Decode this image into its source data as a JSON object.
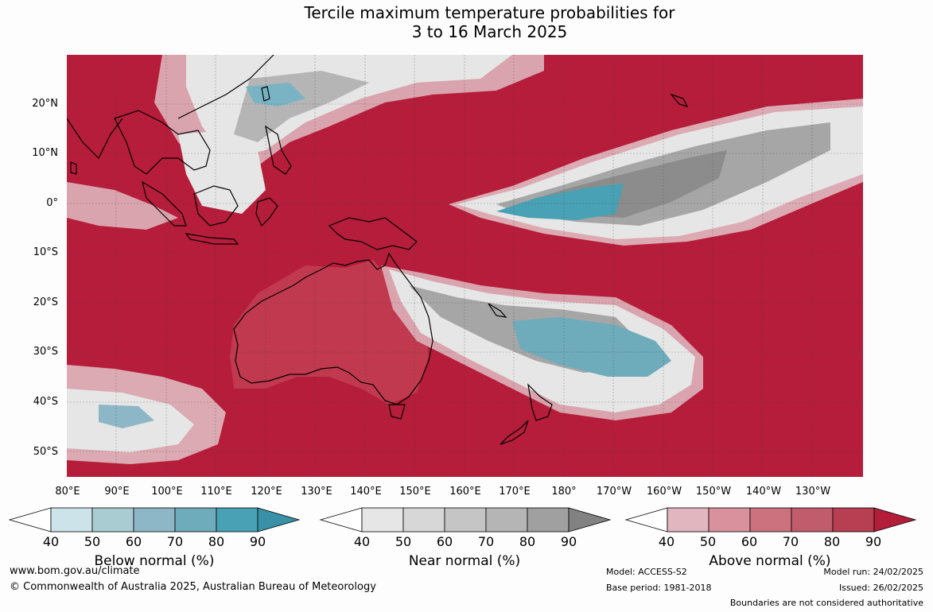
{
  "title": {
    "line1": "Tercile maximum temperature probabilities for",
    "line2": "3 to 16 March 2025"
  },
  "map": {
    "lat_labels": [
      "20°N",
      "10°N",
      "0°",
      "10°S",
      "20°S",
      "30°S",
      "40°S",
      "50°S"
    ],
    "lon_labels": [
      "80°E",
      "90°E",
      "100°E",
      "110°E",
      "120°E",
      "130°E",
      "140°E",
      "150°E",
      "160°E",
      "170°E",
      "180°",
      "170°W",
      "160°W",
      "150°W",
      "140°W",
      "130°W"
    ],
    "colors": {
      "ocean_above_high": "#b51d3a",
      "above_mid": "#c94e62",
      "near_light": "#e6e6e6",
      "near_mid": "#b5b5b5",
      "near_dark": "#8c8c8c",
      "below": "#4aa0b5",
      "coast": "#000000"
    }
  },
  "legends": [
    {
      "title": "Below normal (%)",
      "ticks": [
        "40",
        "50",
        "60",
        "70",
        "80",
        "90"
      ],
      "colors": [
        "#ffffff",
        "#cde3ea",
        "#a9ccd3",
        "#8db7c6",
        "#6eabbb",
        "#48a1b4",
        "#3891a7"
      ]
    },
    {
      "title": "Near normal (%)",
      "ticks": [
        "40",
        "50",
        "60",
        "70",
        "80",
        "90"
      ],
      "colors": [
        "#ffffff",
        "#e6e6e6",
        "#d7d7d7",
        "#c5c5c5",
        "#b5b5b5",
        "#a0a0a0",
        "#828282"
      ]
    },
    {
      "title": "Above normal (%)",
      "ticks": [
        "40",
        "50",
        "60",
        "70",
        "80",
        "90"
      ],
      "colors": [
        "#ffffff",
        "#e2b6bf",
        "#d8919d",
        "#cc727f",
        "#c15c6c",
        "#b83e52",
        "#b31d3a"
      ]
    }
  ],
  "footer": {
    "url": "www.bom.gov.au/climate",
    "copyright": "© Commonwealth of Australia 2025, Australian Bureau of Meteorology",
    "model": "Model: ACCESS-S2",
    "base_period": "Base period: 1981-2018",
    "model_run": "Model run: 24/02/2025",
    "issued": "Issued: 26/02/2025",
    "boundaries": "Boundaries are not considered authoritative"
  }
}
